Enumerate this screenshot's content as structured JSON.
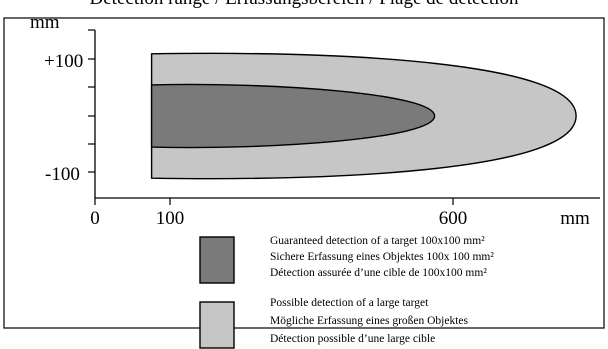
{
  "header": {
    "cropped_title": "Detection range / Erfassungsbereich / Plage de détection"
  },
  "axes": {
    "y_unit": "mm",
    "x_unit": "mm",
    "y_ticks": [
      "+100",
      "-100"
    ],
    "x_ticks": [
      "0",
      "100",
      "600"
    ]
  },
  "zones": {
    "guaranteed": {
      "color": "#7a7a7a",
      "x_start_mm": 100,
      "x_end_mm": 600,
      "y_half_mm": 55
    },
    "possible": {
      "color": "#c6c6c6",
      "x_start_mm": 100,
      "x_end_mm": 850,
      "y_half_mm": 110
    }
  },
  "legend": {
    "guaranteed": {
      "color": "#7a7a7a",
      "lines": [
        "Guaranteed detection of a target 100x100 mm²",
        "Sichere Erfassung eines Objektes 100x 100 mm²",
        "Détection assurée d’une cible de 100x100 mm²"
      ]
    },
    "possible": {
      "color": "#c6c6c6",
      "lines": [
        "Possible detection of a large target",
        "Mögliche Erfassung eines  großen Objektes",
        "Détection possible d’une large cible"
      ]
    }
  }
}
